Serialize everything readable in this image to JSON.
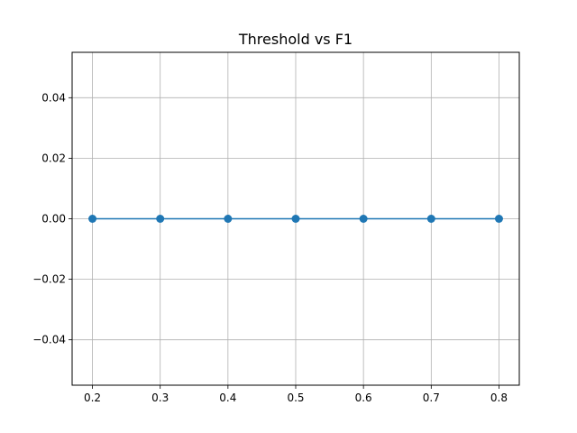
{
  "chart_data": {
    "type": "line",
    "title": "Threshold vs F1",
    "xlabel": "",
    "ylabel": "",
    "x": [
      0.2,
      0.3,
      0.4,
      0.5,
      0.6,
      0.7,
      0.8
    ],
    "series": [
      {
        "values": [
          0.0,
          0.0,
          0.0,
          0.0,
          0.0,
          0.0,
          0.0
        ],
        "color": "#1f77b4",
        "marker": "circle"
      }
    ],
    "xlim": [
      0.17,
      0.83
    ],
    "ylim": [
      -0.055,
      0.055
    ],
    "x_ticks": [
      0.2,
      0.3,
      0.4,
      0.5,
      0.6,
      0.7,
      0.8
    ],
    "x_tick_labels": [
      "0.2",
      "0.3",
      "0.4",
      "0.5",
      "0.6",
      "0.7",
      "0.8"
    ],
    "y_ticks": [
      -0.04,
      -0.02,
      0.0,
      0.02,
      0.04
    ],
    "y_tick_labels": [
      "−0.04",
      "−0.02",
      "0.00",
      "0.02",
      "0.04"
    ],
    "grid": true,
    "legend": "none"
  },
  "colors": {
    "grid": "#b0b0b0",
    "axes": "#000000",
    "series": "#1f77b4"
  }
}
